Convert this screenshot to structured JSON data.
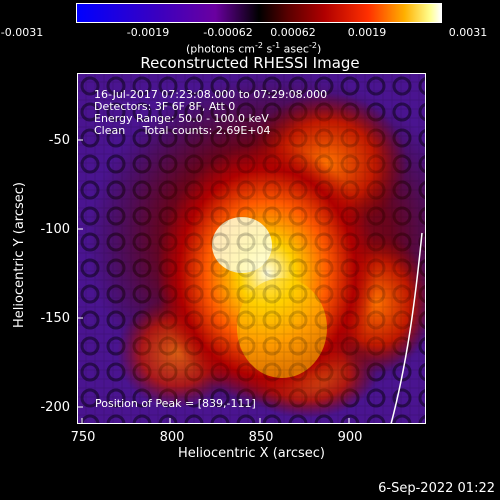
{
  "colorbar": {
    "ticks": [
      "-0.0031",
      "-0.0019",
      "-0.00062",
      "0.00062",
      "0.0019",
      "0.0031"
    ],
    "unit_main": "(photons cm",
    "unit_sup1": "-2",
    "unit_mid1": " s",
    "unit_sup2": "-1",
    "unit_mid2": " asec",
    "unit_sup3": "-2",
    "unit_end": ")"
  },
  "image": {
    "title": "Reconstructed RHESSI Image",
    "info": [
      "16-Jul-2017 07:23:08.000 to 07:29:08.000",
      "Detectors: 3F 6F 8F, Att 0",
      "Energy Range: 50.0 - 100.0 keV",
      "Clean     Total counts: 2.69E+04"
    ],
    "peak_label": "Position of Peak = [839,-111]",
    "xlabel": "Heliocentric X (arcsec)",
    "ylabel": "Heliocentric Y (arcsec)",
    "xticks": [
      "750",
      "800",
      "850",
      "900"
    ],
    "yticks": [
      "-50",
      "-100",
      "-150",
      "-200"
    ],
    "timestamp": "6-Sep-2022 01:22",
    "colors": {
      "background": "#000000",
      "limb": "#ffffff"
    }
  }
}
